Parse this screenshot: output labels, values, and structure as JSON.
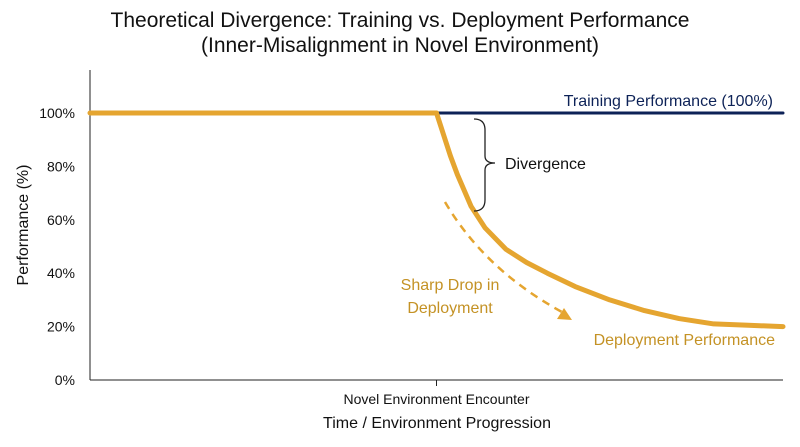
{
  "chart_data": {
    "type": "line",
    "title": "Theoretical Divergence: Training vs. Deployment Performance",
    "subtitle": "(Inner-Misalignment in Novel Environment)",
    "xlabel": "Time / Environment Progression",
    "ylabel": "Performance (%)",
    "ylim": [
      0,
      100
    ],
    "xlim": [
      0,
      100
    ],
    "y_ticks": [
      0,
      20,
      40,
      60,
      80,
      100
    ],
    "y_tick_labels": [
      "0%",
      "20%",
      "40%",
      "60%",
      "80%",
      "100%"
    ],
    "x_ticks": [
      50
    ],
    "x_tick_labels": [
      "Novel Environment Encounter"
    ],
    "grid": false,
    "series": [
      {
        "name": "Training Performance (100%)",
        "color": "#0d2257",
        "x": [
          0,
          100
        ],
        "y": [
          100,
          100
        ]
      },
      {
        "name": "Deployment Performance",
        "color": "#e5a530",
        "x": [
          0,
          50,
          51,
          52,
          53,
          55,
          57,
          60,
          63,
          66,
          70,
          75,
          80,
          85,
          90,
          95,
          100
        ],
        "y": [
          100,
          100,
          92,
          84,
          77,
          65,
          57,
          49,
          44,
          40,
          35,
          30,
          26,
          23,
          21,
          20.5,
          20
        ]
      }
    ],
    "annotations": [
      {
        "name": "divergence",
        "text": "Divergence",
        "color": "#111111"
      },
      {
        "name": "sharp-drop",
        "lines": [
          "Sharp Drop in",
          "Deployment"
        ],
        "color": "#c49225"
      }
    ]
  }
}
